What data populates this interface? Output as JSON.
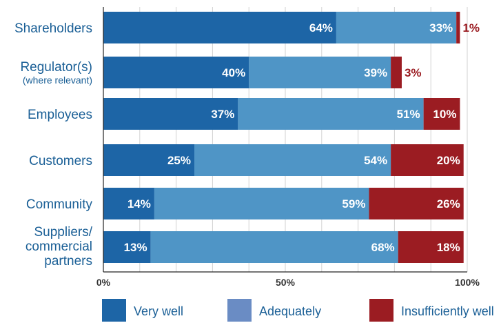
{
  "chart_data": {
    "type": "bar",
    "orientation": "horizontal",
    "stacked": true,
    "categories": [
      [
        "Shareholders"
      ],
      [
        "Regulator(s)",
        "(where relevant)"
      ],
      [
        "Employees"
      ],
      [
        "Customers"
      ],
      [
        "Community"
      ],
      [
        "Suppliers/",
        "commercial",
        "partners"
      ]
    ],
    "series": [
      {
        "name": "Very well",
        "color": "#1d65a6",
        "label_color": "#ffffff",
        "values": [
          64,
          40,
          37,
          25,
          14,
          13
        ]
      },
      {
        "name": "Adequately",
        "color": "#4f95c6",
        "label_color": "#ffffff",
        "values": [
          33,
          39,
          51,
          54,
          59,
          68
        ]
      },
      {
        "name": "Insufficiently well",
        "color": "#9b1c22",
        "label_color": "#ffffff",
        "values": [
          1,
          3,
          10,
          20,
          26,
          18
        ]
      }
    ],
    "data_labels": [
      [
        "64%",
        "33%",
        "1%"
      ],
      [
        "40%",
        "39%",
        "3%"
      ],
      [
        "37%",
        "51%",
        "10%"
      ],
      [
        "25%",
        "54%",
        "20%"
      ],
      [
        "14%",
        "59%",
        "26%"
      ],
      [
        "13%",
        "68%",
        "18%"
      ]
    ],
    "x_ticks": [
      "0%",
      "50%",
      "100%"
    ],
    "xlim": [
      0,
      100
    ],
    "grid": true,
    "legend_position": "bottom",
    "legend_swatch_colors": [
      "#1d65a6",
      "#6a8cc4",
      "#9b1c22"
    ]
  }
}
